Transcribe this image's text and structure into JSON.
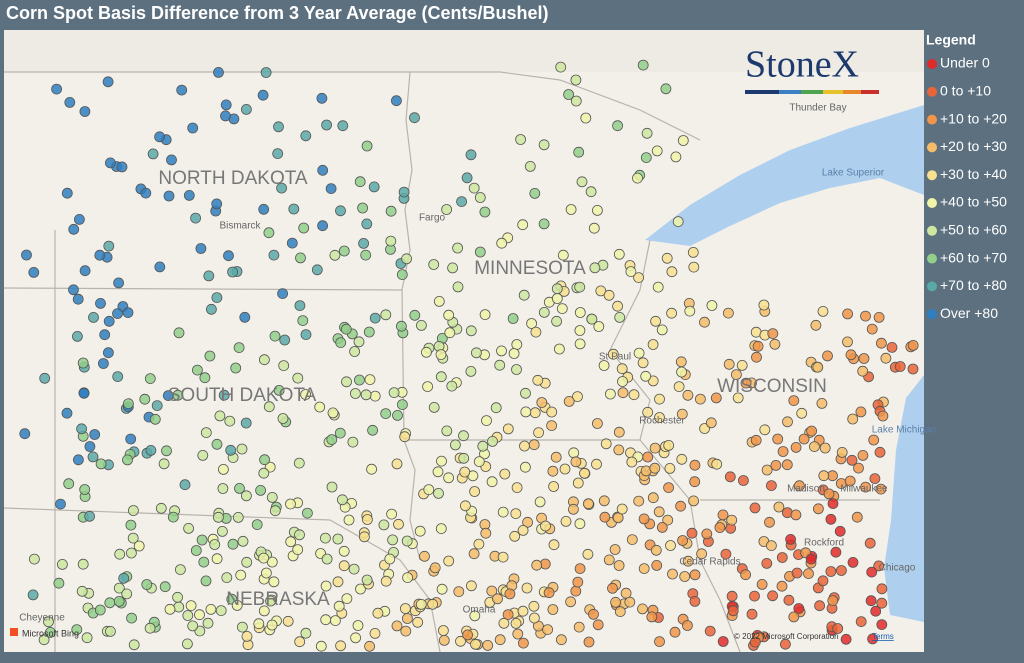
{
  "header": {
    "title": "Corn Spot Basis Difference from 3 Year Average (Cents/Bushel)"
  },
  "legend": {
    "title": "Legend",
    "items": [
      {
        "label": "Under 0",
        "color": "#e02a2a"
      },
      {
        "label": "0 to +10",
        "color": "#e8643a"
      },
      {
        "label": "+10 to +20",
        "color": "#f0954a"
      },
      {
        "label": "+20 to +30",
        "color": "#f5bd6a"
      },
      {
        "label": "+30 to +40",
        "color": "#f7e08f"
      },
      {
        "label": "+40 to +50",
        "color": "#f0f3a8"
      },
      {
        "label": "+50 to +60",
        "color": "#cde6a0"
      },
      {
        "label": "+60 to +70",
        "color": "#92cf8a"
      },
      {
        "label": "+70 to +80",
        "color": "#5aa9a8"
      },
      {
        "label": "Over +80",
        "color": "#2f7fc0"
      }
    ]
  },
  "logo": {
    "text": "StoneX"
  },
  "map": {
    "labels": [
      "NORTH DAKOTA",
      "MINNESOTA",
      "SOUTH DAKOTA",
      "WISCONSIN",
      "NEBRASKA",
      "Bismarck",
      "Fargo",
      "Thunder Bay",
      "Lake Superior",
      "St Paul",
      "Rochester",
      "Madison",
      "Milwaukee",
      "Lake Michigan",
      "Rockford",
      "Chicago",
      "Cedar Rapids",
      "Omaha",
      "Cheyenne"
    ]
  },
  "attribution": {
    "provider": "Microsoft Bing",
    "copyright": "© 2022 Microsoft Corporation",
    "terms": "Terms"
  }
}
